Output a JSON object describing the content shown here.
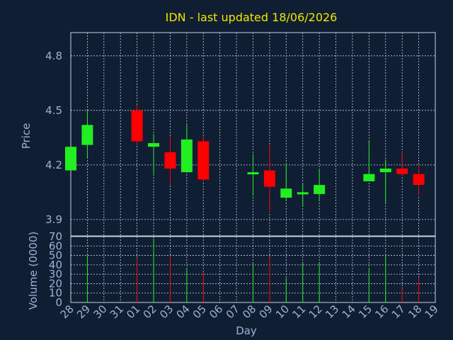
{
  "title": "IDN - last updated 18/06/2026",
  "chart_data": [
    {
      "type": "candlestick",
      "ylabel": "Price",
      "ylim": [
        3.81,
        4.99
      ],
      "yticks": [
        3.9,
        4.2,
        4.5,
        4.8
      ],
      "grid": true,
      "candles": [
        {
          "day": "28",
          "open": 4.17,
          "high": 4.3,
          "low": 4.17,
          "close": 4.3
        },
        {
          "day": "29",
          "open": 4.31,
          "high": 4.5,
          "low": 4.24,
          "close": 4.42
        },
        {
          "day": "01",
          "open": 4.5,
          "high": 4.53,
          "low": 4.31,
          "close": 4.33
        },
        {
          "day": "02",
          "open": 4.3,
          "high": 4.37,
          "low": 4.15,
          "close": 4.32
        },
        {
          "day": "03",
          "open": 4.27,
          "high": 4.36,
          "low": 4.09,
          "close": 4.18
        },
        {
          "day": "04",
          "open": 4.16,
          "high": 4.42,
          "low": 4.16,
          "close": 4.34
        },
        {
          "day": "05",
          "open": 4.33,
          "high": 4.36,
          "low": 4.11,
          "close": 4.12
        },
        {
          "day": "08",
          "open": 4.15,
          "high": 4.26,
          "low": 4.03,
          "close": 4.16
        },
        {
          "day": "09",
          "open": 4.17,
          "high": 4.31,
          "low": 3.94,
          "close": 4.08
        },
        {
          "day": "10",
          "open": 4.02,
          "high": 4.21,
          "low": 4.0,
          "close": 4.07
        },
        {
          "day": "11",
          "open": 4.04,
          "high": 4.1,
          "low": 3.97,
          "close": 4.05
        },
        {
          "day": "12",
          "open": 4.04,
          "high": 4.18,
          "low": 4.0,
          "close": 4.09
        },
        {
          "day": "15",
          "open": 4.11,
          "high": 4.33,
          "low": 4.11,
          "close": 4.15
        },
        {
          "day": "16",
          "open": 4.16,
          "high": 4.23,
          "low": 3.99,
          "close": 4.18
        },
        {
          "day": "17",
          "open": 4.18,
          "high": 4.27,
          "low": 4.14,
          "close": 4.15
        },
        {
          "day": "18",
          "open": 4.15,
          "high": 4.2,
          "low": 4.03,
          "close": 4.09
        }
      ]
    },
    {
      "type": "bar",
      "xlabel": "Day",
      "ylabel": "Volume (0000)",
      "ylim": [
        0,
        70
      ],
      "yticks": [
        0,
        10,
        20,
        30,
        40,
        50,
        60,
        70
      ],
      "grid": true,
      "categories": [
        "28",
        "29",
        "30",
        "31",
        "01",
        "02",
        "03",
        "04",
        "05",
        "06",
        "07",
        "08",
        "09",
        "10",
        "11",
        "12",
        "13",
        "14",
        "15",
        "16",
        "17",
        "18",
        "19"
      ],
      "values": [
        null,
        50,
        null,
        null,
        47,
        68,
        50,
        37,
        33,
        null,
        null,
        42,
        48,
        26,
        43,
        42,
        null,
        null,
        36,
        50,
        15,
        26,
        null
      ],
      "bar_direction": [
        "",
        "up",
        "",
        "",
        "down",
        "up",
        "down",
        "up",
        "down",
        "",
        "",
        "up",
        "down",
        "up",
        "up",
        "up",
        "",
        "",
        "up",
        "up",
        "down",
        "down",
        ""
      ]
    }
  ],
  "colors": {
    "background": "#0f1e33",
    "up": "#22ee22",
    "down": "#ff0000",
    "grid": "#c9d3e0",
    "title": "#f2e600",
    "text": "#9cb3d3"
  }
}
